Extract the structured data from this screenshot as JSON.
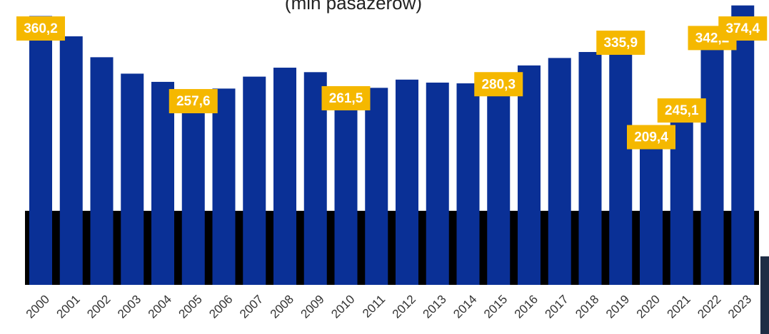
{
  "chart_data": {
    "type": "bar",
    "title": "(mln pasażerów)",
    "categories": [
      "2000",
      "2001",
      "2002",
      "2003",
      "2004",
      "2005",
      "2006",
      "2007",
      "2008",
      "2009",
      "2010",
      "2011",
      "2012",
      "2013",
      "2014",
      "2015",
      "2016",
      "2017",
      "2018",
      "2019",
      "2020",
      "2021",
      "2022",
      "2023"
    ],
    "values": [
      360.2,
      333,
      305,
      283,
      272,
      257.6,
      263,
      279,
      291,
      285,
      261.5,
      264,
      275,
      271,
      270,
      280.3,
      294,
      304,
      312,
      335.9,
      209.4,
      245.1,
      342.2,
      374.4
    ],
    "value_labels": [
      "360,2",
      null,
      null,
      null,
      null,
      "257,6",
      null,
      null,
      null,
      null,
      "261,5",
      null,
      null,
      null,
      null,
      "280,3",
      null,
      null,
      null,
      "335,9",
      "209,4",
      "245,1",
      "342,2",
      "374,4"
    ],
    "color": "#0a3096",
    "label_color": "#f5b800"
  }
}
